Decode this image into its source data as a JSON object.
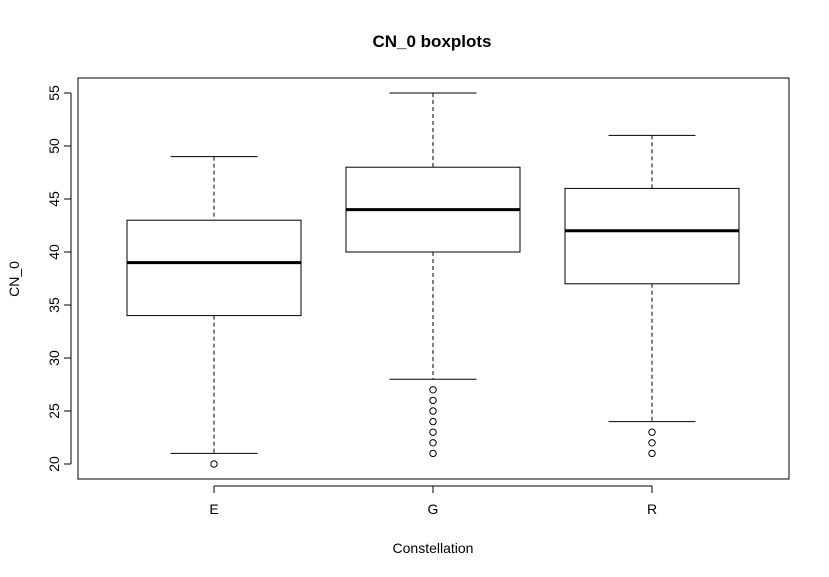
{
  "chart_data": {
    "type": "boxplot",
    "title": "CN_0 boxplots",
    "xlabel": "Constellation",
    "ylabel": "CN_0",
    "ylim": [
      19,
      56
    ],
    "yticks": [
      20,
      25,
      30,
      35,
      40,
      45,
      50,
      55
    ],
    "grid": false,
    "categories": [
      "E",
      "G",
      "R"
    ],
    "boxes": [
      {
        "category": "E",
        "whisker_low": 21,
        "q1": 34,
        "median": 39,
        "q3": 43,
        "whisker_high": 49,
        "outliers": [
          20
        ]
      },
      {
        "category": "G",
        "whisker_low": 28,
        "q1": 40,
        "median": 44,
        "q3": 48,
        "whisker_high": 55,
        "outliers": [
          21,
          22,
          23,
          24,
          25,
          26,
          27
        ]
      },
      {
        "category": "R",
        "whisker_low": 24,
        "q1": 37,
        "median": 42,
        "q3": 46,
        "whisker_high": 51,
        "outliers": [
          21,
          22,
          23
        ]
      }
    ]
  }
}
